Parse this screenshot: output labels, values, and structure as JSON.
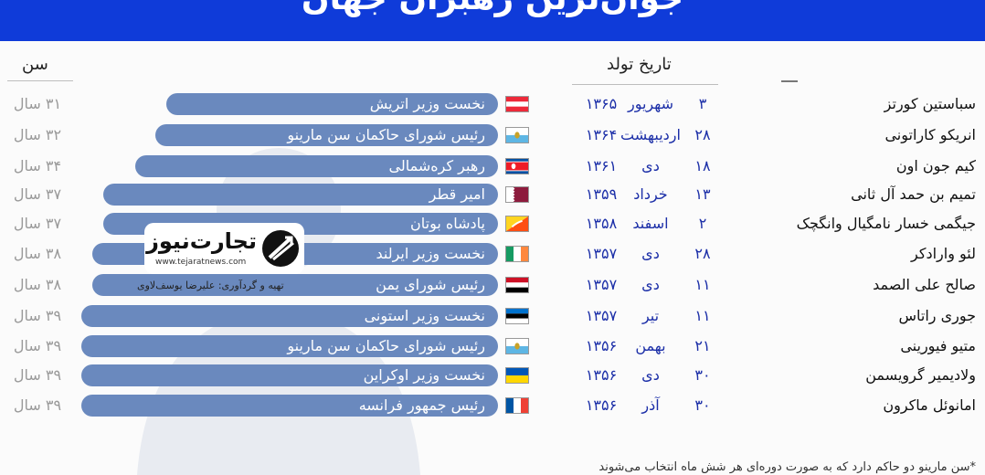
{
  "header": {
    "title": "جوان‌ترین رهبران جهان"
  },
  "columns": {
    "birth_label": "تاریخ تولد",
    "age_label": "سن"
  },
  "brand": {
    "name": "تجارت‌نیوز",
    "url": "www.tejaratnews.com",
    "credit": "تهیه و گردآوری: علیرضا یوسف‌لاوی"
  },
  "footnote": "*سن مارینو دو حاکم دارد که به صورت دوره‌ای هر شش ماه انتخاب می‌شوند",
  "colors": {
    "header": "#0f3bd9",
    "pill": "#6a89be",
    "date_text": "#1c2fa8",
    "age_text": "#9a9a9a"
  },
  "leaders": [
    {
      "name": "سباستین کورتز",
      "day": "۳",
      "month": "شهریور",
      "year": "۱۳۶۵",
      "flag": "austria-flag",
      "role": "نخست وزیر اتریش",
      "age": "۳۱ سال"
    },
    {
      "name": "انریکو کاراتونی",
      "day": "۲۸",
      "month": "اردیبهشت",
      "year": "۱۳۶۴",
      "flag": "san-marino-flag",
      "role": "رئیس شورای حاکمان سن مارینو",
      "age": "۳۲ سال"
    },
    {
      "name": "کیم جون اون",
      "day": "۱۸",
      "month": "دی",
      "year": "۱۳۶۱",
      "flag": "north-korea-flag",
      "role": "رهبر کره‌شمالی",
      "age": "۳۴ سال"
    },
    {
      "name": "تمیم بن حمد آل ثانی",
      "day": "۱۳",
      "month": "خرداد",
      "year": "۱۳۵۹",
      "flag": "qatar-flag",
      "role": "امیر قطر",
      "age": "۳۷ سال"
    },
    {
      "name": "جیگمی خسار نامگیال وانگچک",
      "day": "۲",
      "month": "اسفند",
      "year": "۱۳۵۸",
      "flag": "bhutan-flag",
      "role": "پادشاه بوتان",
      "age": "۳۷ سال"
    },
    {
      "name": "لئو وارادکر",
      "day": "۲۸",
      "month": "دی",
      "year": "۱۳۵۷",
      "flag": "ireland-flag",
      "role": "نخست وزیر ایرلند",
      "age": "۳۸ سال"
    },
    {
      "name": "صالح علی الصمد",
      "day": "۱۱",
      "month": "دی",
      "year": "۱۳۵۷",
      "flag": "yemen-flag",
      "role": "رئیس شورای  یمن",
      "age": "۳۸ سال"
    },
    {
      "name": "جوری راتاس",
      "day": "۱۱",
      "month": "تیر",
      "year": "۱۳۵۷",
      "flag": "estonia-flag",
      "role": "نخست وزیر استونی",
      "age": "۳۹ سال"
    },
    {
      "name": "متیو فیورینی",
      "day": "۲۱",
      "month": "بهمن",
      "year": "۱۳۵۶",
      "flag": "san-marino-flag",
      "role": "رئیس شورای حاکمان  سن مارینو",
      "age": "۳۹ سال"
    },
    {
      "name": "ولادیمیر گرویسمن",
      "day": "۳۰",
      "month": "دی",
      "year": "۱۳۵۶",
      "flag": "ukraine-flag",
      "role": "نخست وزیر اوکراین",
      "age": "۳۹ سال"
    },
    {
      "name": "امانوئل ماکرون",
      "day": "۳۰",
      "month": "آذر",
      "year": "۱۳۵۶",
      "flag": "france-flag",
      "role": "رئیس جمهور فرانسه",
      "age": "۳۹ سال"
    }
  ]
}
